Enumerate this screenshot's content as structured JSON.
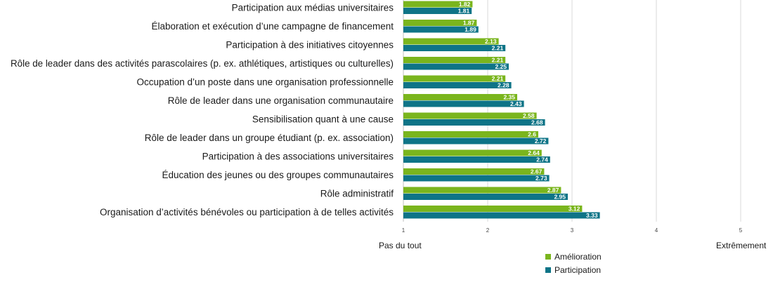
{
  "chart_data": {
    "type": "bar",
    "orientation": "horizontal",
    "categories": [
      "Participation aux médias universitaires",
      "Élaboration et exécution d’une campagne de financement",
      "Participation à des initiatives citoyennes",
      "Rôle de leader dans des activités parascolaires (p. ex. athlétiques, artistiques ou culturelles)",
      "Occupation d’un poste dans une organisation professionnelle",
      "Rôle de leader dans une organisation communautaire",
      "Sensibilisation quant à une cause",
      "Rôle de leader dans un groupe étudiant (p. ex. association)",
      "Participation à des associations universitaires",
      "Éducation des jeunes ou des groupes communautaires",
      "Rôle administratif",
      "Organisation d’activités bénévoles ou participation à de telles activités"
    ],
    "series": [
      {
        "name": "Amélioration",
        "color": "#7ab51d",
        "values": [
          1.82,
          1.87,
          2.13,
          2.21,
          2.21,
          2.35,
          2.58,
          2.6,
          2.64,
          2.67,
          2.87,
          3.12
        ],
        "labels": [
          "1.82",
          "1.87",
          "2.13",
          "2.21",
          "2.21",
          "2.35",
          "2.58",
          "2.6",
          "2.64",
          "2.67",
          "2.87",
          "3.12"
        ]
      },
      {
        "name": "Participation",
        "color": "#0e7487",
        "values": [
          1.81,
          1.89,
          2.21,
          2.25,
          2.28,
          2.43,
          2.68,
          2.72,
          2.74,
          2.73,
          2.95,
          3.33
        ],
        "labels": [
          "1.81",
          "1.89",
          "2.21",
          "2.25",
          "2.28",
          "2.43",
          "2.68",
          "2.72",
          "2.74",
          "2.73",
          "2.95",
          "3.33"
        ]
      }
    ],
    "xlim": [
      1,
      5
    ],
    "x_ticks": [
      "1",
      "2",
      "3",
      "4",
      "5"
    ],
    "scale_low_label": "Pas du tout",
    "scale_high_label": "Extrêmement",
    "grid": "vertical",
    "legend_position": "bottom-center"
  }
}
